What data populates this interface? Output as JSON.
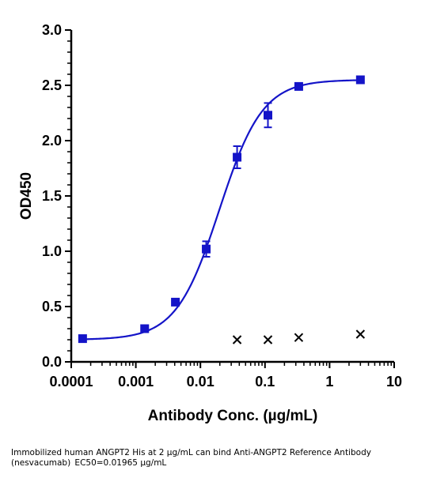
{
  "chart_data": {
    "type": "scatter",
    "title": "",
    "xlabel": "Antibody Conc. (µg/mL)",
    "ylabel": "OD450",
    "xscale": "log",
    "xlim": [
      0.0001,
      10
    ],
    "ylim": [
      0,
      3.0
    ],
    "xticks": [
      "0.0001",
      "0.001",
      "0.01",
      "0.1",
      "1",
      "10"
    ],
    "yticks": [
      "0.0",
      "0.5",
      "1.0",
      "1.5",
      "2.0",
      "2.5",
      "3.0"
    ],
    "grid": false,
    "legend": "none",
    "series": [
      {
        "marker": "square",
        "color": "#1414c8",
        "fit": "4PL curve",
        "x": [
          0.00015,
          0.00137,
          0.0041,
          0.0123,
          0.037,
          0.111,
          0.333,
          3.0
        ],
        "y": [
          0.21,
          0.3,
          0.54,
          1.02,
          1.85,
          2.23,
          2.49,
          2.55
        ],
        "error": [
          0.01,
          0.01,
          0.01,
          0.07,
          0.1,
          0.11,
          0.02,
          0.01
        ]
      },
      {
        "marker": "x",
        "color": "#000000",
        "x": [
          0.037,
          0.111,
          0.333,
          3.0
        ],
        "y": [
          0.2,
          0.2,
          0.22,
          0.25
        ]
      }
    ],
    "fit_params": {
      "bottom": 0.2,
      "top": 2.55,
      "ec50": 0.01965,
      "hill": 1.3
    }
  },
  "caption": {
    "line1": "Immobilized human ANGPT2 His at 2 µg/mL can bind Anti-ANGPT2 Reference Antibody",
    "line2": "(nesvacumab) EC50=0.01965 µg/mL"
  }
}
